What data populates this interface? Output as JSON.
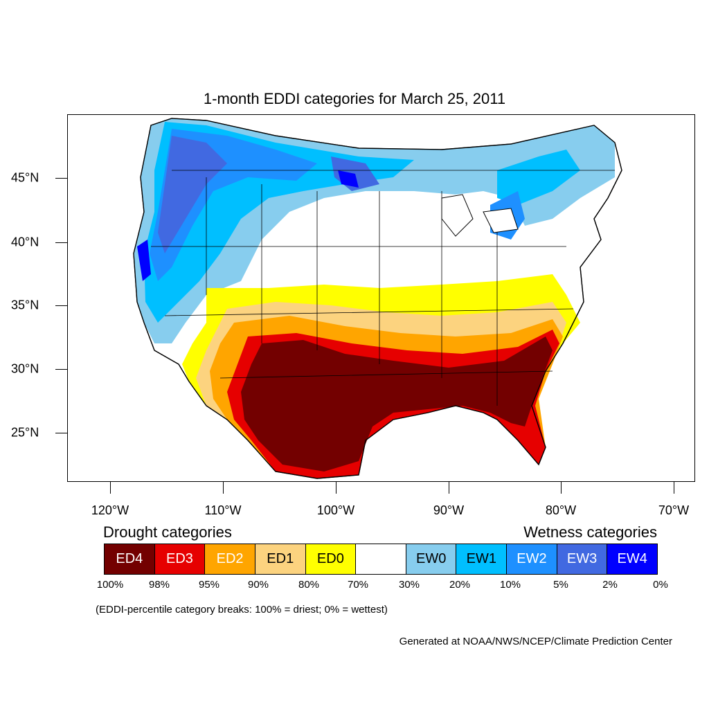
{
  "title": "1-month EDDI categories for March 25, 2011",
  "latitude_labels": [
    "45°N",
    "40°N",
    "35°N",
    "30°N",
    "25°N"
  ],
  "longitude_labels": [
    "120°W",
    "110°W",
    "100°W",
    "90°W",
    "80°W",
    "70°W"
  ],
  "legend": {
    "drought_title": "Drought categories",
    "wetness_title": "Wetness categories",
    "categories": [
      {
        "label": "ED4",
        "color": "#730000",
        "text_color": "#ffffff"
      },
      {
        "label": "ED3",
        "color": "#e60000",
        "text_color": "#ffffff"
      },
      {
        "label": "ED2",
        "color": "#ffa500",
        "text_color": "#ffffff"
      },
      {
        "label": "ED1",
        "color": "#fcd37f",
        "text_color": "#000000"
      },
      {
        "label": "ED0",
        "color": "#ffff00",
        "text_color": "#000000"
      },
      {
        "label": "",
        "color": "#ffffff",
        "text_color": "#000000"
      },
      {
        "label": "EW0",
        "color": "#87cdee",
        "text_color": "#000000"
      },
      {
        "label": "EW1",
        "color": "#00bfff",
        "text_color": "#000000"
      },
      {
        "label": "EW2",
        "color": "#1e90ff",
        "text_color": "#ffffff"
      },
      {
        "label": "EW3",
        "color": "#4169e1",
        "text_color": "#ffffff"
      },
      {
        "label": "EW4",
        "color": "#0000ff",
        "text_color": "#ffffff"
      }
    ],
    "breaks": [
      "100%",
      "98%",
      "95%",
      "90%",
      "80%",
      "70%",
      "30%",
      "20%",
      "10%",
      "5%",
      "2%",
      "0%"
    ]
  },
  "note": "(EDDI-percentile category breaks: 100% = driest; 0% = wettest)",
  "credit": "Generated at NOAA/NWS/NCEP/Climate Prediction Center"
}
